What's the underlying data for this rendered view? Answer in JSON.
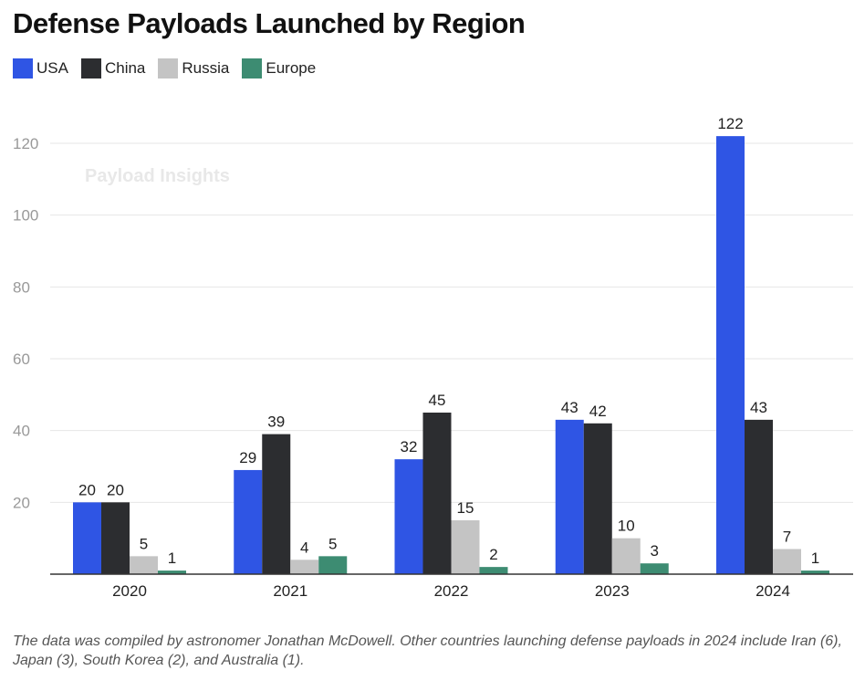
{
  "chart_data": {
    "type": "bar",
    "title": "Defense Payloads Launched by Region",
    "categories": [
      "2020",
      "2021",
      "2022",
      "2023",
      "2024"
    ],
    "series": [
      {
        "name": "USA",
        "color": "#2f55e4",
        "values": [
          20,
          29,
          32,
          43,
          122
        ]
      },
      {
        "name": "China",
        "color": "#2c2d30",
        "values": [
          20,
          39,
          45,
          42,
          43
        ]
      },
      {
        "name": "Russia",
        "color": "#c4c4c4",
        "values": [
          5,
          4,
          15,
          10,
          7
        ]
      },
      {
        "name": "Europe",
        "color": "#3d8c72",
        "values": [
          1,
          5,
          2,
          3,
          1
        ]
      }
    ],
    "ylim": [
      0,
      120
    ],
    "yticks": [
      20,
      40,
      60,
      80,
      100,
      120
    ],
    "grid": true,
    "legend": "top-left",
    "watermark": "Payload Insights",
    "note": "The data was compiled by astronomer Jonathan McDowell. Other countries launching defense payloads in 2024 include Iran (6), Japan (3), South Korea (2), and Australia (1)."
  }
}
